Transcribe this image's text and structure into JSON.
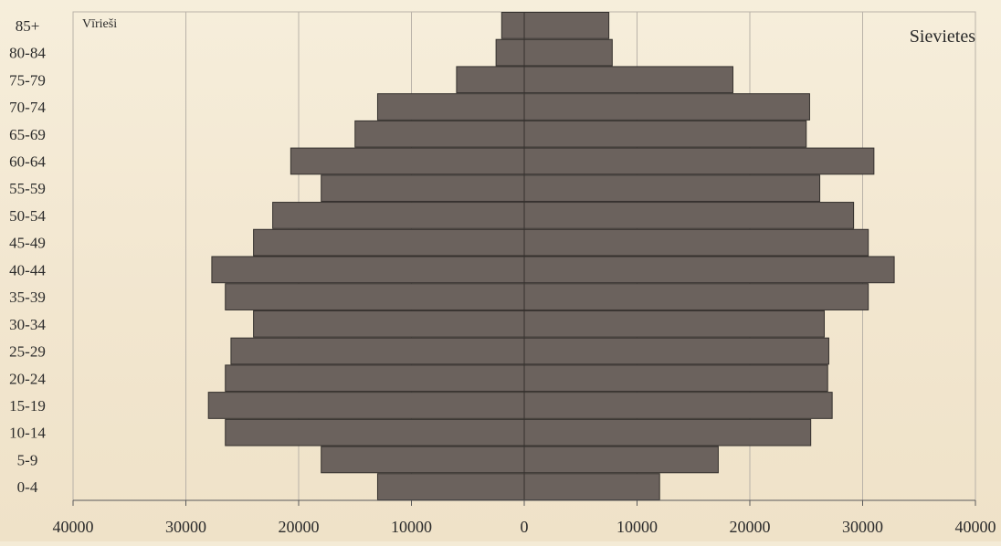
{
  "chart_data": {
    "type": "bar",
    "orientation": "horizontal",
    "categories": [
      "85+",
      "80-84",
      "75-79",
      "70-74",
      "65-69",
      "60-64",
      "55-59",
      "50-54",
      "45-49",
      "40-44",
      "35-39",
      "30-34",
      "25-29",
      "20-24",
      "15-19",
      "10-14",
      "5-9",
      "0-4"
    ],
    "series": [
      {
        "name": "Vīrieši",
        "values": [
          2000,
          2500,
          6000,
          13000,
          15000,
          20700,
          18000,
          22300,
          24000,
          27700,
          26500,
          24000,
          26000,
          26500,
          28000,
          26500,
          18000,
          13000
        ]
      },
      {
        "name": "Sievietes",
        "values": [
          7500,
          7800,
          18500,
          25300,
          25000,
          31000,
          26200,
          29200,
          30500,
          32800,
          30500,
          26600,
          27000,
          26900,
          27300,
          25400,
          17200,
          12000
        ]
      }
    ],
    "x_ticks": [
      "40000",
      "30000",
      "20000",
      "10000",
      "0",
      "10000",
      "20000",
      "30000",
      "40000"
    ],
    "xlim": [
      -40000,
      40000
    ],
    "grid": true,
    "colors": {
      "bar": "#6b625d",
      "bar_edge": "#34302d",
      "grid": "#b9b2a8",
      "axis": "#5a5a5a"
    }
  }
}
